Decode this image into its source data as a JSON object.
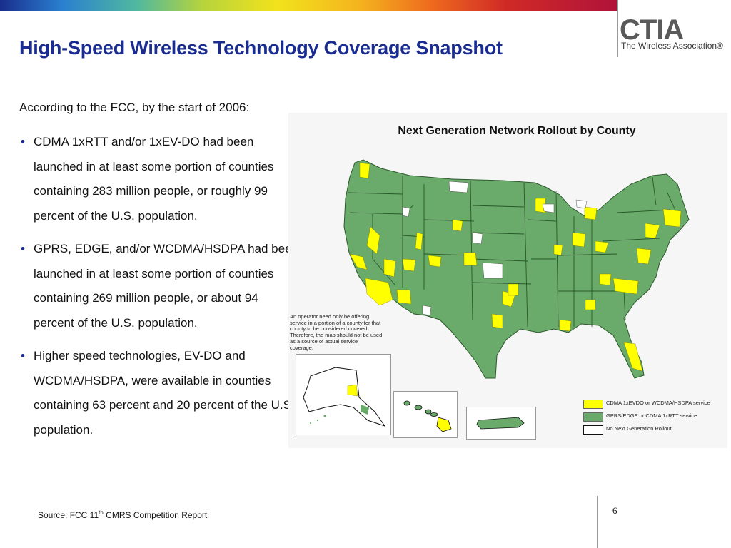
{
  "slide": {
    "title": "High-Speed Wireless Technology Coverage Snapshot",
    "intro": "According to the FCC, by the start of 2006:",
    "bullets": [
      "CDMA 1xRTT and/or 1xEV-DO had been launched in at least some portion of counties containing 283 million people, or roughly 99 percent of the U.S. population.",
      "GPRS, EDGE, and/or WCDMA/HSDPA had been launched in at least some portion of counties containing 269 million people, or about 94 percent of the U.S. population.",
      "Higher speed technologies, EV-DO and WCDMA/HSDPA, were available in counties containing 63 percent and 20 percent of the U.S. population."
    ],
    "source_prefix": "Source: FCC 11",
    "source_sup": "th",
    "source_suffix": " CMRS Competition Report",
    "page_number": "6"
  },
  "logo": {
    "word": "CTIA",
    "tagline": "The Wireless Association®"
  },
  "map": {
    "title": "Next Generation Network Rollout by County",
    "disclaimer": "An operator need only be offering service in a portion of a county for that county to be considered covered. Therefore, the map should not be used as a source of actual service coverage.",
    "legend": [
      {
        "label": "CDMA 1xEVDO or WCDMA/HSDPA service",
        "color": "#ffff00"
      },
      {
        "label": "GPRS/EDGE or CDMA 1xRTT service",
        "color": "#6aaa6a"
      },
      {
        "label": "No Next Generation Rollout",
        "color": "#ffffff"
      }
    ],
    "insets": [
      "alaska",
      "hawaii",
      "puerto-rico"
    ]
  },
  "colors": {
    "title": "#1a2c8f",
    "map_green": "#6aaa6a",
    "map_yellow": "#ffff00"
  }
}
